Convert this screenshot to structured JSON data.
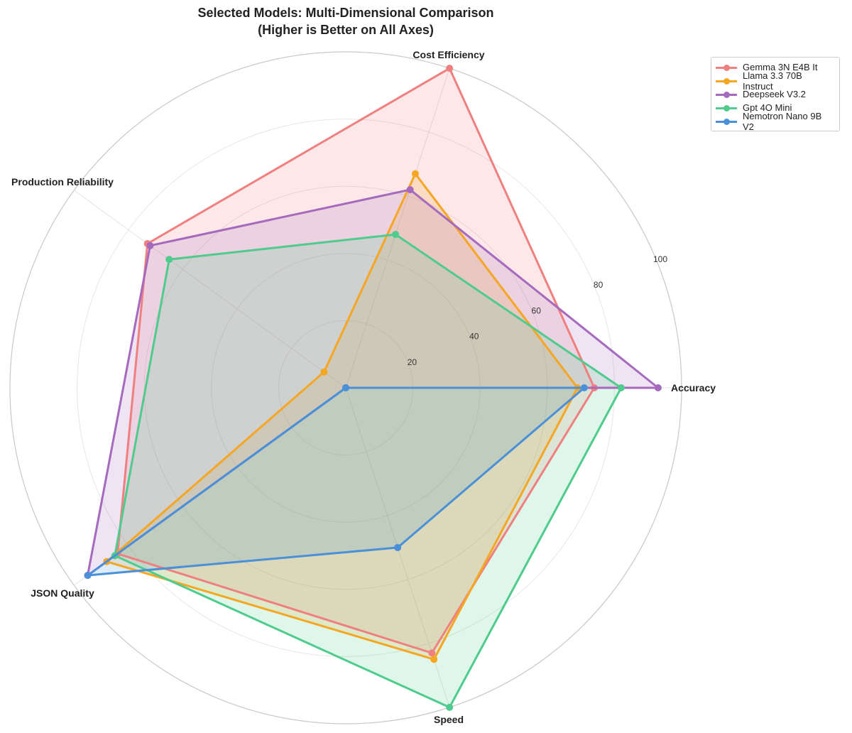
{
  "chart_data": {
    "type": "radar",
    "title": "Selected Models: Multi-Dimensional Comparison",
    "subtitle": "(Higher is Better on All Axes)",
    "categories": [
      "Accuracy",
      "Cost Efficiency",
      "Production Reliability",
      "JSON Quality",
      "Speed"
    ],
    "radial_ticks": [
      20,
      40,
      60,
      80,
      100
    ],
    "rlim": [
      0,
      100
    ],
    "grid": true,
    "legend_position": "upper right (outside)",
    "series": [
      {
        "name": "Gemma 3N E4B It",
        "color": "#f08080",
        "values": [
          74,
          100,
          73,
          84,
          83
        ]
      },
      {
        "name": "Llama 3.3 70B Instruct",
        "color": "#f5a623",
        "values": [
          69,
          67,
          8,
          88,
          85
        ]
      },
      {
        "name": "Deepseek V3.2",
        "color": "#a569bd",
        "values": [
          93,
          62,
          72,
          95,
          0
        ]
      },
      {
        "name": "Gpt 4O Mini",
        "color": "#4ecb8d",
        "values": [
          82,
          48,
          65,
          85,
          100
        ]
      },
      {
        "name": "Nemotron Nano 9B V2",
        "color": "#4a90d9",
        "values": [
          71,
          0,
          0,
          95,
          50
        ]
      }
    ]
  }
}
